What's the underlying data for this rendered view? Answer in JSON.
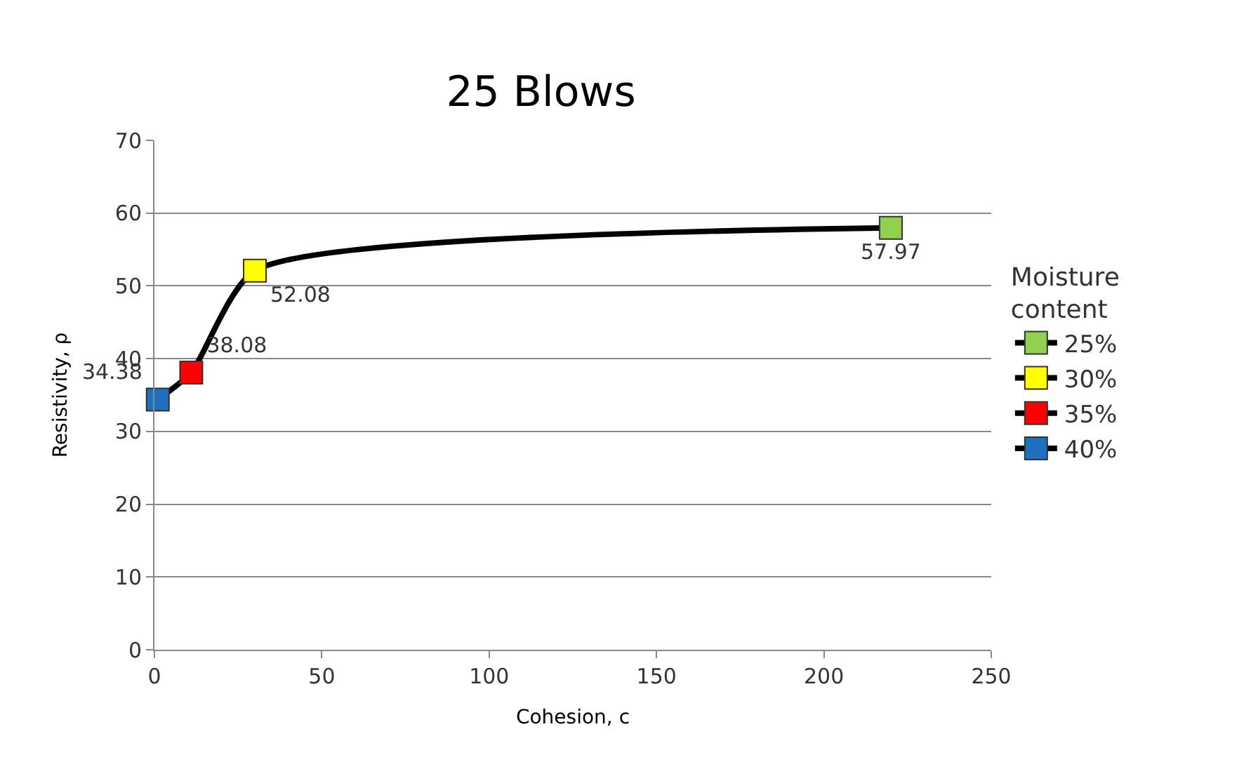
{
  "chart_data": {
    "type": "scatter",
    "title": "25 Blows",
    "xlabel": "Cohesion, c",
    "ylabel": "Resistivity, ρ",
    "legend_title": "Moisture content",
    "series": [
      {
        "name": "25%",
        "color": "#92d050",
        "x": [
          220
        ],
        "values": [
          57.97
        ]
      },
      {
        "name": "30%",
        "color": "#ffff00",
        "x": [
          30
        ],
        "values": [
          52.08
        ]
      },
      {
        "name": "35%",
        "color": "#ff0000",
        "x": [
          11
        ],
        "values": [
          38.08
        ]
      },
      {
        "name": "40%",
        "color": "#1f6fbf",
        "x": [
          1
        ],
        "values": [
          34.38
        ]
      },
      {
        "type": "line",
        "color": "#000000",
        "marker": "none",
        "x": [
          1,
          11,
          30,
          220
        ],
        "values": [
          34.38,
          38.08,
          52.08,
          57.97
        ],
        "value_labels": [
          null,
          null,
          null,
          null
        ]
      }
    ],
    "xlim": [
      0,
      250
    ],
    "xticks": [
      0,
      50,
      100,
      150,
      200,
      250
    ],
    "ylim": [
      0,
      70
    ],
    "yticks": [
      0,
      10,
      20,
      30,
      40,
      50,
      60,
      70
    ],
    "grid": "y",
    "legend": "right",
    "marker": "square",
    "data_labels": true
  }
}
